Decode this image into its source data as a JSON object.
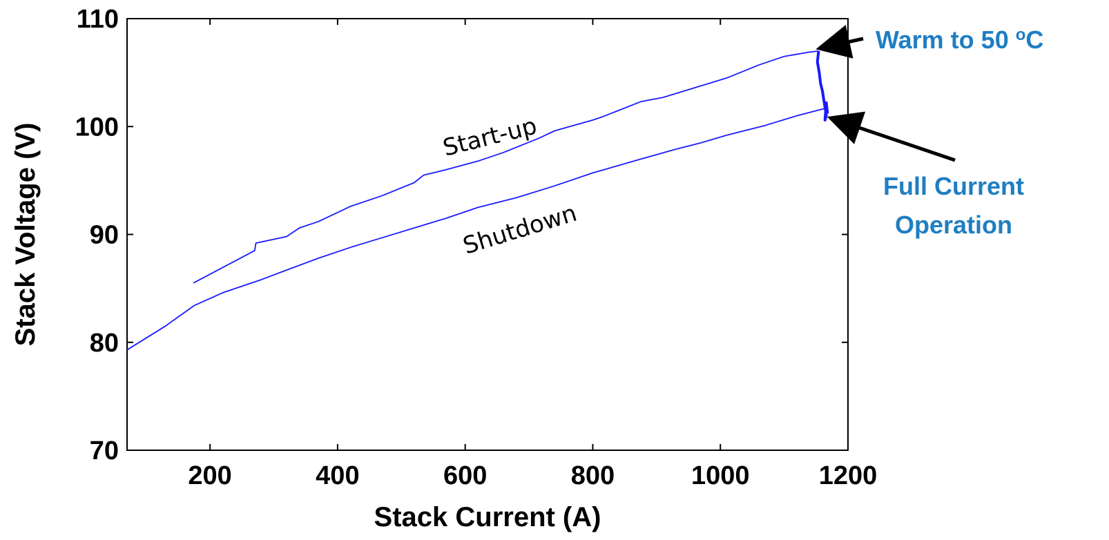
{
  "chart_data": {
    "type": "line",
    "title": "",
    "xlabel": "Stack Current (A)",
    "ylabel": "Stack Voltage (V)",
    "xlim": [
      70,
      1200
    ],
    "ylim": [
      70,
      110
    ],
    "x_ticks": [
      200,
      400,
      600,
      800,
      1000,
      1200
    ],
    "y_ticks": [
      70,
      80,
      90,
      100,
      110
    ],
    "grid": false,
    "series": [
      {
        "name": "Start-up",
        "color": "#1a1aff",
        "points": [
          [
            174,
            85.5
          ],
          [
            270,
            88.5
          ],
          [
            272,
            89.2
          ],
          [
            320,
            89.8
          ],
          [
            340,
            90.6
          ],
          [
            370,
            91.2
          ],
          [
            420,
            92.6
          ],
          [
            470,
            93.6
          ],
          [
            520,
            94.8
          ],
          [
            535,
            95.5
          ],
          [
            570,
            96.0
          ],
          [
            620,
            96.8
          ],
          [
            660,
            97.6
          ],
          [
            715,
            98.9
          ],
          [
            740,
            99.6
          ],
          [
            800,
            100.6
          ],
          [
            815,
            100.9
          ],
          [
            875,
            102.3
          ],
          [
            910,
            102.7
          ],
          [
            960,
            103.6
          ],
          [
            1010,
            104.5
          ],
          [
            1060,
            105.7
          ],
          [
            1100,
            106.5
          ],
          [
            1140,
            106.9
          ],
          [
            1154,
            107.0
          ]
        ]
      },
      {
        "name": "Shutdown",
        "color": "#1a1aff",
        "points": [
          [
            70,
            79.3
          ],
          [
            130,
            81.5
          ],
          [
            175,
            83.4
          ],
          [
            220,
            84.6
          ],
          [
            280,
            85.8
          ],
          [
            320,
            86.7
          ],
          [
            370,
            87.8
          ],
          [
            420,
            88.8
          ],
          [
            470,
            89.7
          ],
          [
            520,
            90.6
          ],
          [
            570,
            91.5
          ],
          [
            620,
            92.5
          ],
          [
            680,
            93.4
          ],
          [
            740,
            94.5
          ],
          [
            800,
            95.7
          ],
          [
            870,
            96.9
          ],
          [
            930,
            97.9
          ],
          [
            970,
            98.5
          ],
          [
            1010,
            99.2
          ],
          [
            1070,
            100.1
          ],
          [
            1120,
            101.0
          ],
          [
            1165,
            101.7
          ]
        ]
      },
      {
        "name": "",
        "color": "#1a1aff",
        "points": [
          [
            1154,
            107.0
          ],
          [
            1152,
            106.0
          ],
          [
            1155,
            105.0
          ],
          [
            1157,
            104.0
          ],
          [
            1160,
            103.3
          ],
          [
            1162,
            102.5
          ],
          [
            1164,
            101.8
          ],
          [
            1166,
            101.0
          ],
          [
            1164,
            100.6
          ],
          [
            1166,
            102.2
          ],
          [
            1168,
            101.2
          ]
        ]
      }
    ],
    "annotations": {
      "startup_label": "Start-up",
      "shutdown_label": "Shutdown",
      "warm_text": "Warm to 50 ",
      "warm_sup": "o",
      "warm_unit": "C",
      "full_line1": "Full Current",
      "full_line2": "Operation"
    }
  }
}
